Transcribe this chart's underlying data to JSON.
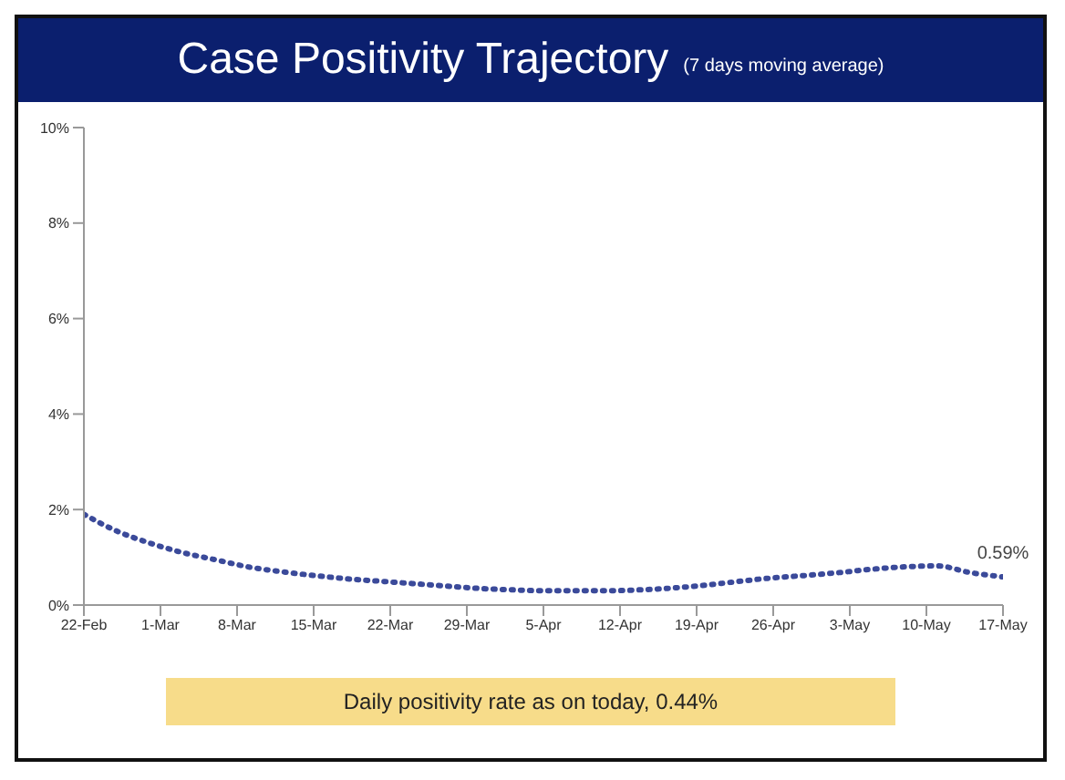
{
  "chart_data": {
    "type": "line",
    "title": "Case Positivity Trajectory",
    "subtitle": "(7 days moving average)",
    "x": [
      "--02-22",
      "--02-25",
      "--02-28",
      "--03-03",
      "--03-06",
      "--03-09",
      "--03-12",
      "--03-15",
      "--03-18",
      "--03-21",
      "--03-24",
      "--03-27",
      "--03-30",
      "--04-02",
      "--04-05",
      "--04-08",
      "--04-11",
      "--04-14",
      "--04-17",
      "--04-20",
      "--04-23",
      "--04-26",
      "--04-29",
      "--05-02",
      "--05-05",
      "--05-08",
      "--05-11",
      "--05-14",
      "--05-17"
    ],
    "series": [
      {
        "color": "#3b4a9a",
        "values": [
          1.9,
          1.55,
          1.3,
          1.1,
          0.95,
          0.8,
          0.7,
          0.62,
          0.55,
          0.5,
          0.45,
          0.4,
          0.35,
          0.32,
          0.3,
          0.3,
          0.3,
          0.32,
          0.36,
          0.42,
          0.5,
          0.57,
          0.62,
          0.68,
          0.75,
          0.8,
          0.82,
          0.68,
          0.59
        ]
      }
    ],
    "xlim": [
      "--02-22",
      "--05-17"
    ],
    "xticks": [
      {
        "value": "--02-22",
        "label": "22-Feb"
      },
      {
        "value": "--03-01",
        "label": "1-Mar"
      },
      {
        "value": "--03-08",
        "label": "8-Mar"
      },
      {
        "value": "--03-15",
        "label": "15-Mar"
      },
      {
        "value": "--03-22",
        "label": "22-Mar"
      },
      {
        "value": "--03-29",
        "label": "29-Mar"
      },
      {
        "value": "--04-05",
        "label": "5-Apr"
      },
      {
        "value": "--04-12",
        "label": "12-Apr"
      },
      {
        "value": "--04-19",
        "label": "19-Apr"
      },
      {
        "value": "--04-26",
        "label": "26-Apr"
      },
      {
        "value": "--05-03",
        "label": "3-May"
      },
      {
        "value": "--05-10",
        "label": "10-May"
      },
      {
        "value": "--05-17",
        "label": "17-May"
      }
    ],
    "ylim": [
      0,
      10
    ],
    "yticks": [
      {
        "value": 0,
        "label": "0%"
      },
      {
        "value": 2,
        "label": "2%"
      },
      {
        "value": 4,
        "label": "4%"
      },
      {
        "value": 6,
        "label": "6%"
      },
      {
        "value": 8,
        "label": "8%"
      },
      {
        "value": 10,
        "label": "10%"
      }
    ],
    "grid": false,
    "legend": false,
    "marker": "none",
    "line_style": "dotted",
    "annotations": [
      {
        "text": "0.59%",
        "x": "--05-17",
        "y": 0.59
      },
      "Daily positivity rate as on today, 0.44%"
    ]
  }
}
